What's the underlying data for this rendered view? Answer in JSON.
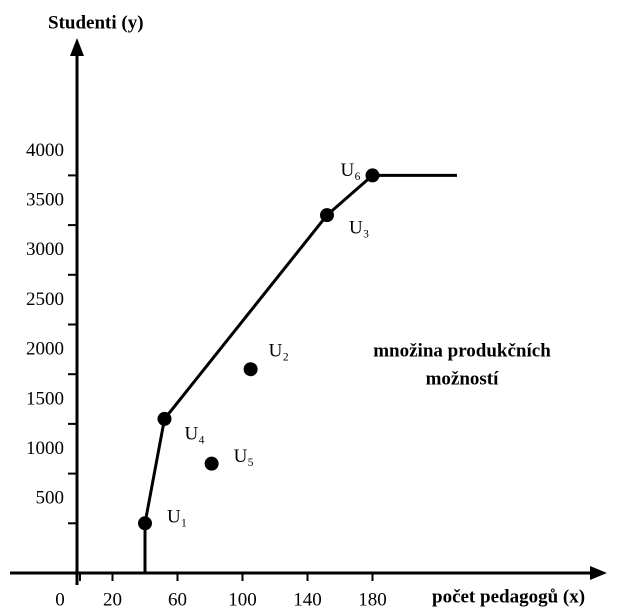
{
  "chart_data": {
    "type": "scatter",
    "y_label": "Studenti (y)",
    "x_label": "počet pedagogů (x)",
    "annotation": [
      "množina produkčních",
      "možností"
    ],
    "xlim": [
      0,
      320
    ],
    "ylim": [
      0,
      5000
    ],
    "xticks": [
      0,
      20,
      60,
      100,
      140,
      180
    ],
    "yticks": [
      500,
      1000,
      1500,
      2000,
      2500,
      3000,
      3500,
      4000
    ],
    "color": "#000000",
    "frontier": {
      "x": [
        40,
        40,
        52,
        152,
        180,
        232
      ],
      "values": [
        0,
        500,
        1550,
        3600,
        4000,
        4000
      ]
    },
    "points": {
      "labels": [
        "U₁",
        "U₄",
        "U₅",
        "U₂",
        "U₃",
        "U₆"
      ],
      "x": [
        40,
        52,
        81,
        105,
        152,
        180
      ],
      "values": [
        500,
        1550,
        1100,
        2050,
        3600,
        4000
      ]
    }
  }
}
